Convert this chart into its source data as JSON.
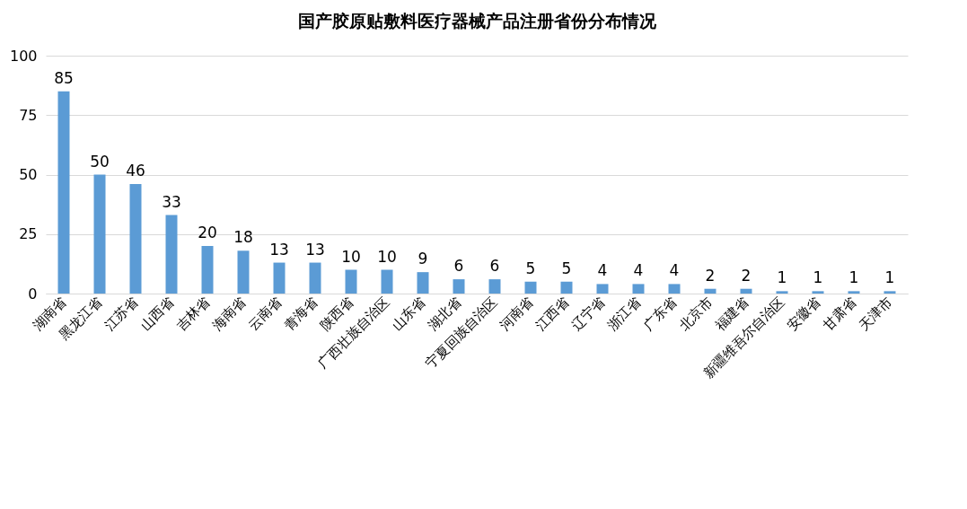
{
  "chart_data": {
    "type": "bar",
    "title": "国产胶原贴敷料医疗器械产品注册省份分布情况",
    "categories": [
      "湖南省",
      "黑龙江省",
      "江苏省",
      "山西省",
      "吉林省",
      "海南省",
      "云南省",
      "青海省",
      "陕西省",
      "广西壮族自治区",
      "山东省",
      "湖北省",
      "宁夏回族自治区",
      "河南省",
      "江西省",
      "辽宁省",
      "浙江省",
      "广东省",
      "北京市",
      "福建省",
      "新疆维吾尔自治区",
      "安徽省",
      "甘肃省",
      "天津市"
    ],
    "values": [
      85,
      50,
      46,
      33,
      20,
      18,
      13,
      13,
      10,
      10,
      9,
      6,
      6,
      5,
      5,
      4,
      4,
      4,
      2,
      2,
      1,
      1,
      1,
      1
    ],
    "color": "#5b9bd5",
    "ylim": [
      0,
      100
    ],
    "yticks": [
      0,
      25,
      50,
      75,
      100
    ],
    "grid": "y",
    "data_labels": true
  }
}
